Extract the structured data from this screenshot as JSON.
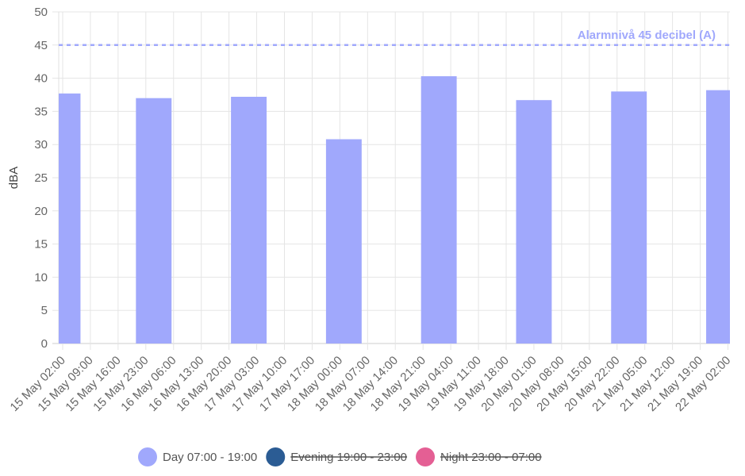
{
  "chart_data": {
    "type": "bar",
    "ylabel": "dBA",
    "ylim": [
      0,
      50
    ],
    "y_ticks": [
      "0",
      "5",
      "10",
      "15",
      "20",
      "25",
      "30",
      "35",
      "40",
      "45",
      "50"
    ],
    "x_tick_labels": [
      "15 May 02:00",
      "15 May 09:00",
      "15 May 16:00",
      "15 May 23:00",
      "16 May 06:00",
      "16 May 13:00",
      "16 May 20:00",
      "17 May 03:00",
      "17 May 10:00",
      "17 May 17:00",
      "18 May 00:00",
      "18 May 07:00",
      "18 May 14:00",
      "18 May 21:00",
      "19 May 04:00",
      "19 May 11:00",
      "19 May 18:00",
      "20 May 01:00",
      "20 May 08:00",
      "20 May 15:00",
      "20 May 22:00",
      "21 May 05:00",
      "21 May 12:00",
      "21 May 19:00",
      "22 May 02:00"
    ],
    "grid": true,
    "legend_position": "bottom",
    "series": [
      {
        "name": "Day 07:00 - 19:00",
        "color": "#a0a8fc",
        "hidden": false,
        "points": [
          {
            "x": "15 May 02:00",
            "y": 37.7
          },
          {
            "x": "16 May 01:00",
            "y": 37.0
          },
          {
            "x": "17 May 01:00",
            "y": 37.2
          },
          {
            "x": "18 May 01:00",
            "y": 30.8
          },
          {
            "x": "19 May 01:00",
            "y": 40.3
          },
          {
            "x": "20 May 01:00",
            "y": 36.7
          },
          {
            "x": "21 May 01:00",
            "y": 38.0
          },
          {
            "x": "22 May 01:00",
            "y": 38.2
          }
        ]
      },
      {
        "name": "Evening 19:00 - 23:00",
        "color": "#2b5c94",
        "hidden": true,
        "points": []
      },
      {
        "name": "Night 23:00 - 07:00",
        "color": "#e45f94",
        "hidden": true,
        "points": []
      }
    ],
    "annotations": [
      {
        "type": "horizontal_line",
        "value": 45,
        "label": "Alarmnivå 45 decibel (A)",
        "color": "#a0a8fc"
      }
    ]
  }
}
